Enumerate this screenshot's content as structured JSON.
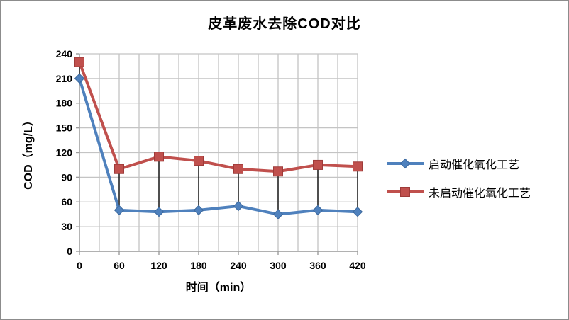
{
  "chart_data": {
    "type": "line",
    "title": "皮革废水去除COD对比",
    "xlabel": "时间（min）",
    "ylabel": "COD（mg/L）",
    "x": [
      0,
      60,
      120,
      180,
      240,
      300,
      360,
      420
    ],
    "series": [
      {
        "name": "启动催化氧化工艺",
        "color": "#4F81BD",
        "border": "#3A679C",
        "marker": "diamond",
        "values": [
          210,
          50,
          48,
          50,
          55,
          45,
          50,
          48
        ]
      },
      {
        "name": "未启动催化氧化工艺",
        "color": "#C0504D",
        "border": "#9E3B39",
        "marker": "square",
        "values": [
          230,
          100,
          115,
          110,
          100,
          97,
          105,
          103
        ]
      }
    ],
    "xlim": [
      0,
      420
    ],
    "ylim": [
      0,
      240
    ],
    "xtick_step": 60,
    "x_minor_gridline_step": 30,
    "ytick_step": 30,
    "grid": true,
    "high_low_lines": true,
    "legend_position": "right",
    "colors": {
      "gridline": "#C4C4C4",
      "axis": "#9C9C9C",
      "high_low": "#1A1A1A",
      "text": "#000000",
      "page_border": "#8C8C8C",
      "background": "#FFFFFF"
    }
  }
}
